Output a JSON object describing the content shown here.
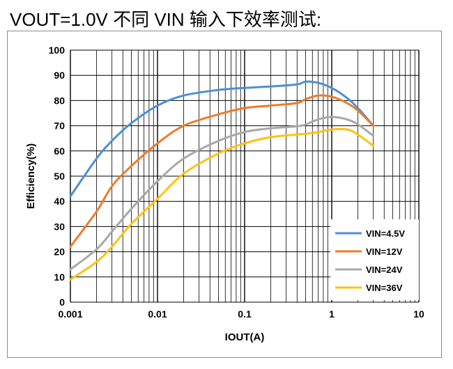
{
  "heading": "VOUT=1.0V 不同 VIN 输入下效率测试:",
  "colors": {
    "grid": "#000000",
    "series": [
      "#4a90d6",
      "#f07a2a",
      "#a8a8a8",
      "#ffc20e"
    ]
  },
  "chart_data": {
    "type": "line",
    "title": "",
    "xlabel": "IOUT(A)",
    "ylabel": "Efficiency(%)",
    "xscale": "log",
    "xlim": [
      0.001,
      10
    ],
    "ylim": [
      0,
      100
    ],
    "xticks": [
      "0.001",
      "0.01",
      "0.1",
      "1",
      "10"
    ],
    "yticks": [
      "0",
      "10",
      "20",
      "30",
      "40",
      "50",
      "60",
      "70",
      "80",
      "90",
      "100"
    ],
    "grid": true,
    "legend_position": "bottom-right",
    "series": [
      {
        "name": "VIN=4.5V",
        "x": [
          0.001,
          0.002,
          0.003,
          0.005,
          0.01,
          0.02,
          0.05,
          0.1,
          0.2,
          0.4,
          0.5,
          0.7,
          1,
          1.5,
          2,
          3
        ],
        "y": [
          42,
          57,
          64,
          71,
          78,
          82,
          84.2,
          85,
          85.6,
          86.4,
          87.5,
          87,
          85,
          81,
          77,
          70
        ]
      },
      {
        "name": "VIN=12V",
        "x": [
          0.001,
          0.002,
          0.003,
          0.005,
          0.01,
          0.02,
          0.05,
          0.1,
          0.2,
          0.4,
          0.5,
          0.7,
          1,
          1.5,
          2,
          3
        ],
        "y": [
          22,
          36,
          46,
          54,
          63,
          70,
          74.5,
          77,
          78,
          79,
          80.5,
          82,
          81.5,
          79,
          76,
          70
        ]
      },
      {
        "name": "VIN=24V",
        "x": [
          0.001,
          0.002,
          0.003,
          0.005,
          0.01,
          0.02,
          0.05,
          0.1,
          0.2,
          0.4,
          0.5,
          0.7,
          1,
          1.5,
          2,
          3
        ],
        "y": [
          13,
          21,
          28,
          37,
          48,
          57,
          64,
          67.5,
          69,
          69.8,
          70.5,
          72.5,
          73.5,
          72.5,
          70.5,
          66
        ]
      },
      {
        "name": "VIN=36V",
        "x": [
          0.001,
          0.002,
          0.003,
          0.005,
          0.01,
          0.02,
          0.05,
          0.1,
          0.2,
          0.4,
          0.5,
          0.7,
          1,
          1.5,
          2,
          3
        ],
        "y": [
          9,
          16,
          22,
          31,
          41,
          51,
          59,
          63,
          65.5,
          66.5,
          66.8,
          67.5,
          68.5,
          68.5,
          66.5,
          62
        ]
      }
    ]
  }
}
